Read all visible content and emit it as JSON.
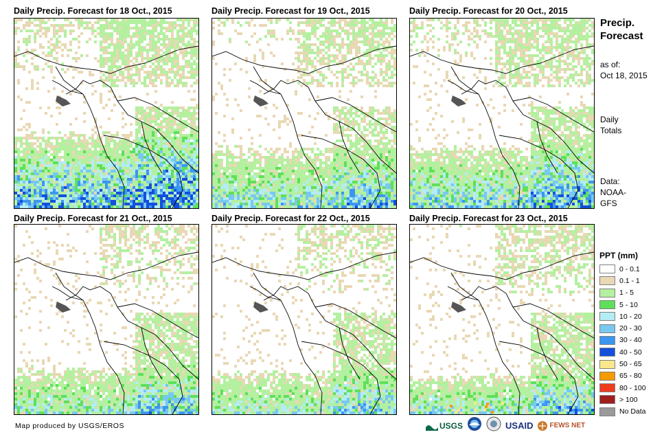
{
  "panels": [
    {
      "title": "Daily Precip. Forecast for 18 Oct., 2015"
    },
    {
      "title": "Daily Precip. Forecast for 19 Oct., 2015"
    },
    {
      "title": "Daily Precip. Forecast for 20 Oct., 2015"
    },
    {
      "title": "Daily Precip. Forecast for 21 Oct., 2015"
    },
    {
      "title": "Daily Precip. Forecast for 22 Oct., 2015"
    },
    {
      "title": "Daily Precip. Forecast for 23 Oct., 2015"
    }
  ],
  "sidebar": {
    "title_line1": "Precip.",
    "title_line2": "Forecast",
    "asof_label": "as of:",
    "asof_date": "Oct 18, 2015",
    "totals_line1": "Daily",
    "totals_line2": "Totals",
    "data_line1": "Data:",
    "data_line2": "NOAA-",
    "data_line3": "GFS"
  },
  "legend": {
    "title": "PPT (mm)",
    "items": [
      {
        "label": "0 - 0.1",
        "color": "#ffffff"
      },
      {
        "label": "0.1 - 1",
        "color": "#e9d8b4"
      },
      {
        "label": "1 - 5",
        "color": "#b4f0a0"
      },
      {
        "label": "5 - 10",
        "color": "#5ee05a"
      },
      {
        "label": "10 - 20",
        "color": "#b4ecf6"
      },
      {
        "label": "20 - 30",
        "color": "#78c8f0"
      },
      {
        "label": "30 - 40",
        "color": "#3c96f0"
      },
      {
        "label": "40 - 50",
        "color": "#1450dc"
      },
      {
        "label": "50 - 65",
        "color": "#fae68c"
      },
      {
        "label": "65 - 80",
        "color": "#f59b00"
      },
      {
        "label": "80 - 100",
        "color": "#f03c1e"
      },
      {
        "label": "> 100",
        "color": "#a01e1e"
      },
      {
        "label": "No Data",
        "color": "#9a9a9a"
      }
    ]
  },
  "footer": {
    "credit": "Map produced by USGS/EROS",
    "logo_usgs": "USGS",
    "logo_usaid": "USAID",
    "logo_fews": "FEWS NET"
  }
}
